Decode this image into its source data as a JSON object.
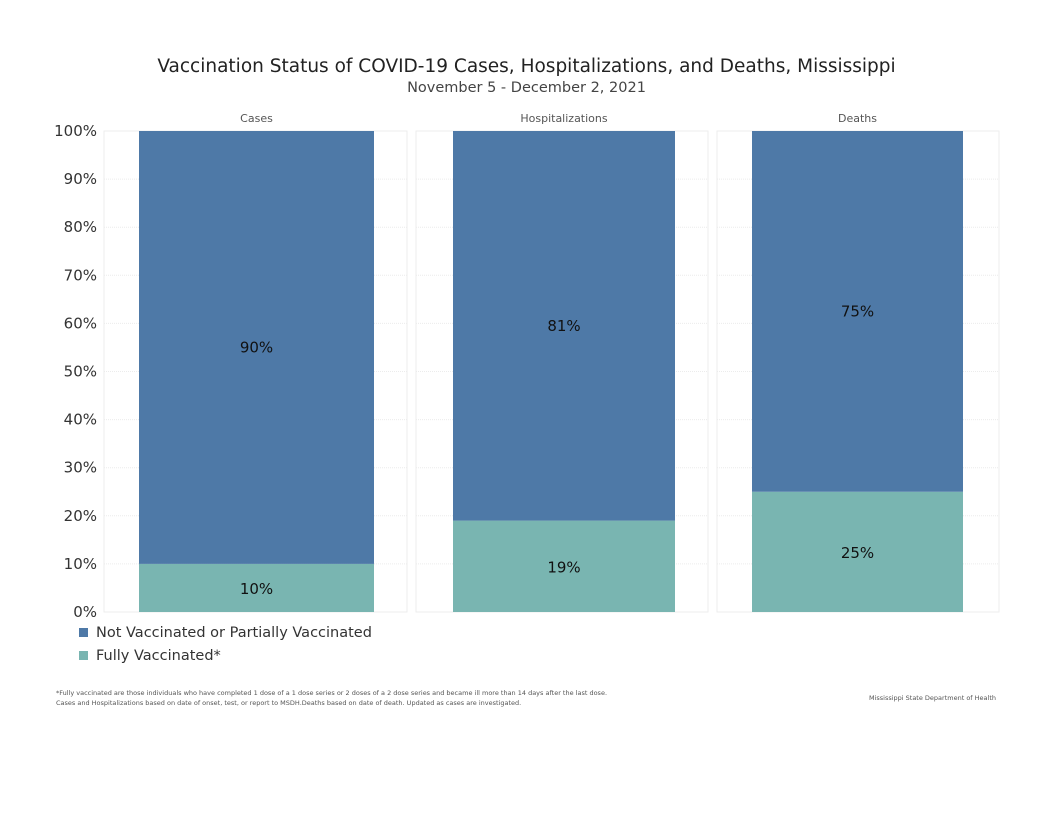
{
  "title": "Vaccination Status of COVID-19 Cases, Hospitalizations, and Deaths, Mississippi",
  "subtitle": "November 5 - December 2, 2021",
  "chart_data": {
    "type": "bar",
    "stacked": true,
    "categories": [
      "Cases",
      "Hospitalizations",
      "Deaths"
    ],
    "series": [
      {
        "name": "Fully Vaccinated*",
        "values": [
          10,
          19,
          25
        ],
        "labels": [
          "10%",
          "19%",
          "25%"
        ],
        "color": "#79b5b1"
      },
      {
        "name": "Not Vaccinated or Partially Vaccinated",
        "values": [
          90,
          81,
          75
        ],
        "labels": [
          "90%",
          "81%",
          "75%"
        ],
        "color": "#4e79a7"
      }
    ],
    "yticks": [
      "0%",
      "10%",
      "20%",
      "30%",
      "40%",
      "50%",
      "60%",
      "70%",
      "80%",
      "90%",
      "100%"
    ],
    "ylim": [
      0,
      100
    ],
    "grid": true
  },
  "legend": [
    {
      "label": "Not Vaccinated or Partially Vaccinated",
      "color": "#4e79a7"
    },
    {
      "label": "Fully Vaccinated*",
      "color": "#79b5b1"
    }
  ],
  "footnote": [
    "*Fully vaccinated are those individuals who have completed 1 dose of a 1 dose series or 2 doses of a 2 dose series and became ill more than 14 days after the last dose.",
    "Cases and Hospitalizations based on date of onset, test, or report to MSDH.Deaths based on date of death. Updated as cases are investigated."
  ],
  "source": "Mississippi State Department of Health"
}
